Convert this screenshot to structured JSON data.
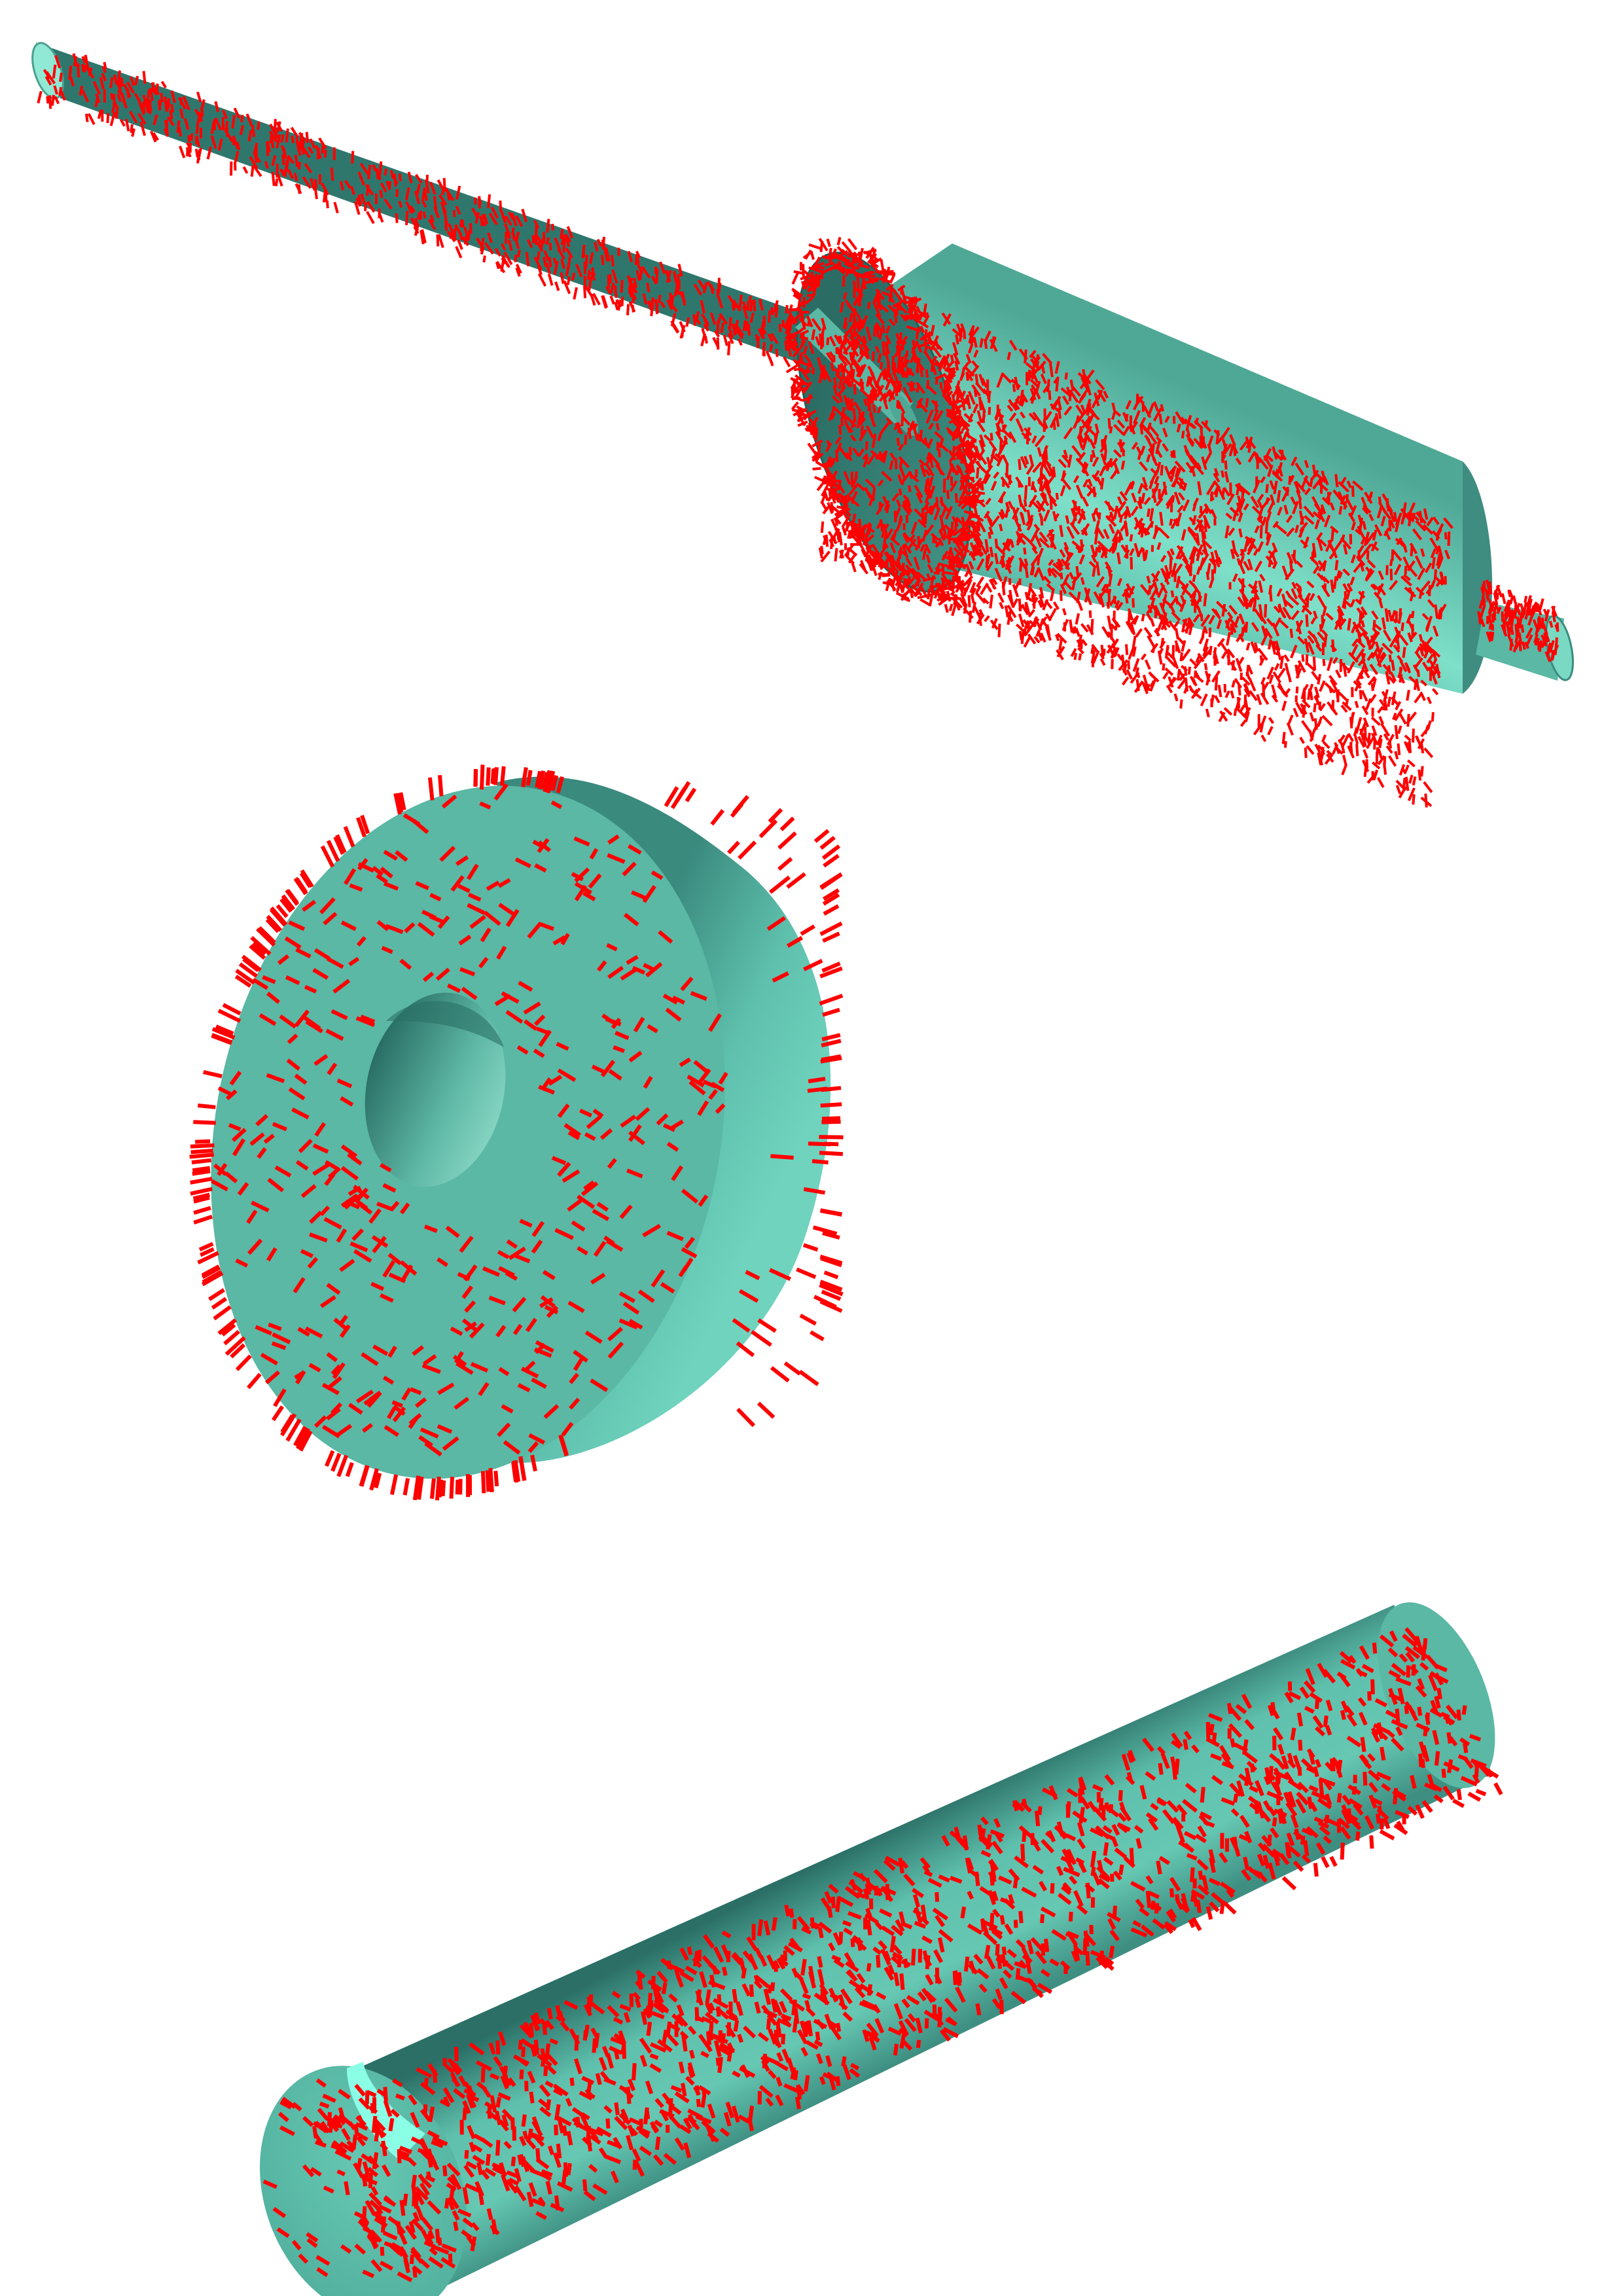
{
  "scene": {
    "background_color": "#ffffff",
    "colors": {
      "surface_light": "#7fe5cf",
      "surface_mid": "#5fc1ad",
      "surface_base": "#5ab8a5",
      "surface_dark": "#2f776d",
      "surface_shadow": "#225e56",
      "bore_light": "#8ad7c5",
      "end_face_highlight": "#8affe6",
      "normal_marker": "#ff0000"
    },
    "objects": [
      {
        "name": "stepped-shaft",
        "description_icon": "stepped-shaft-icon"
      },
      {
        "name": "ring-washer",
        "description_icon": "ring-washer-icon"
      },
      {
        "name": "solid-cylinder",
        "description_icon": "cylinder-icon"
      }
    ]
  }
}
